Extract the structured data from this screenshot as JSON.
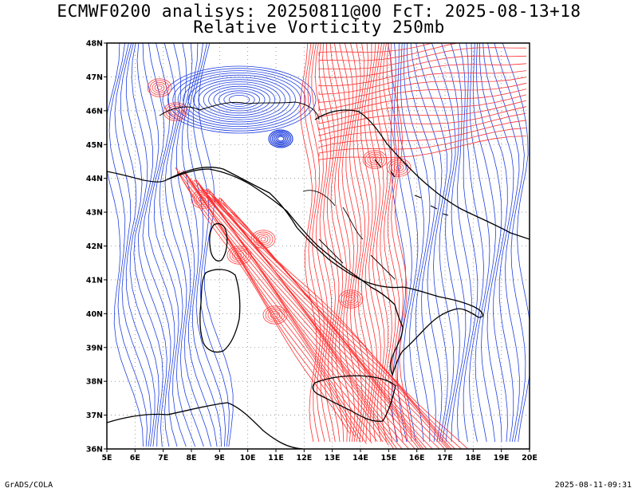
{
  "title": {
    "line1": "ECMWF0200 analisys: 20250811@00 FcT: 2025-08-13+18",
    "line2": "Relative Vorticity 250mb"
  },
  "map": {
    "lon_range": [
      5,
      20
    ],
    "lat_range": [
      36,
      48
    ],
    "lon_labels": [
      "5E",
      "6E",
      "7E",
      "8E",
      "9E",
      "10E",
      "11E",
      "12E",
      "13E",
      "14E",
      "15E",
      "16E",
      "17E",
      "18E",
      "19E",
      "20E"
    ],
    "lat_labels": [
      "36N",
      "37N",
      "38N",
      "39N",
      "40N",
      "41N",
      "42N",
      "43N",
      "44N",
      "45N",
      "46N",
      "47N",
      "48N"
    ],
    "grid": "dotted",
    "colors": {
      "positive_contour": "#ff3030",
      "negative_contour": "#2040e0",
      "coastline": "#000000",
      "grid": "#888888"
    }
  },
  "footer": {
    "left": "GrADS/COLA",
    "right": "2025-08-11-09:31"
  }
}
